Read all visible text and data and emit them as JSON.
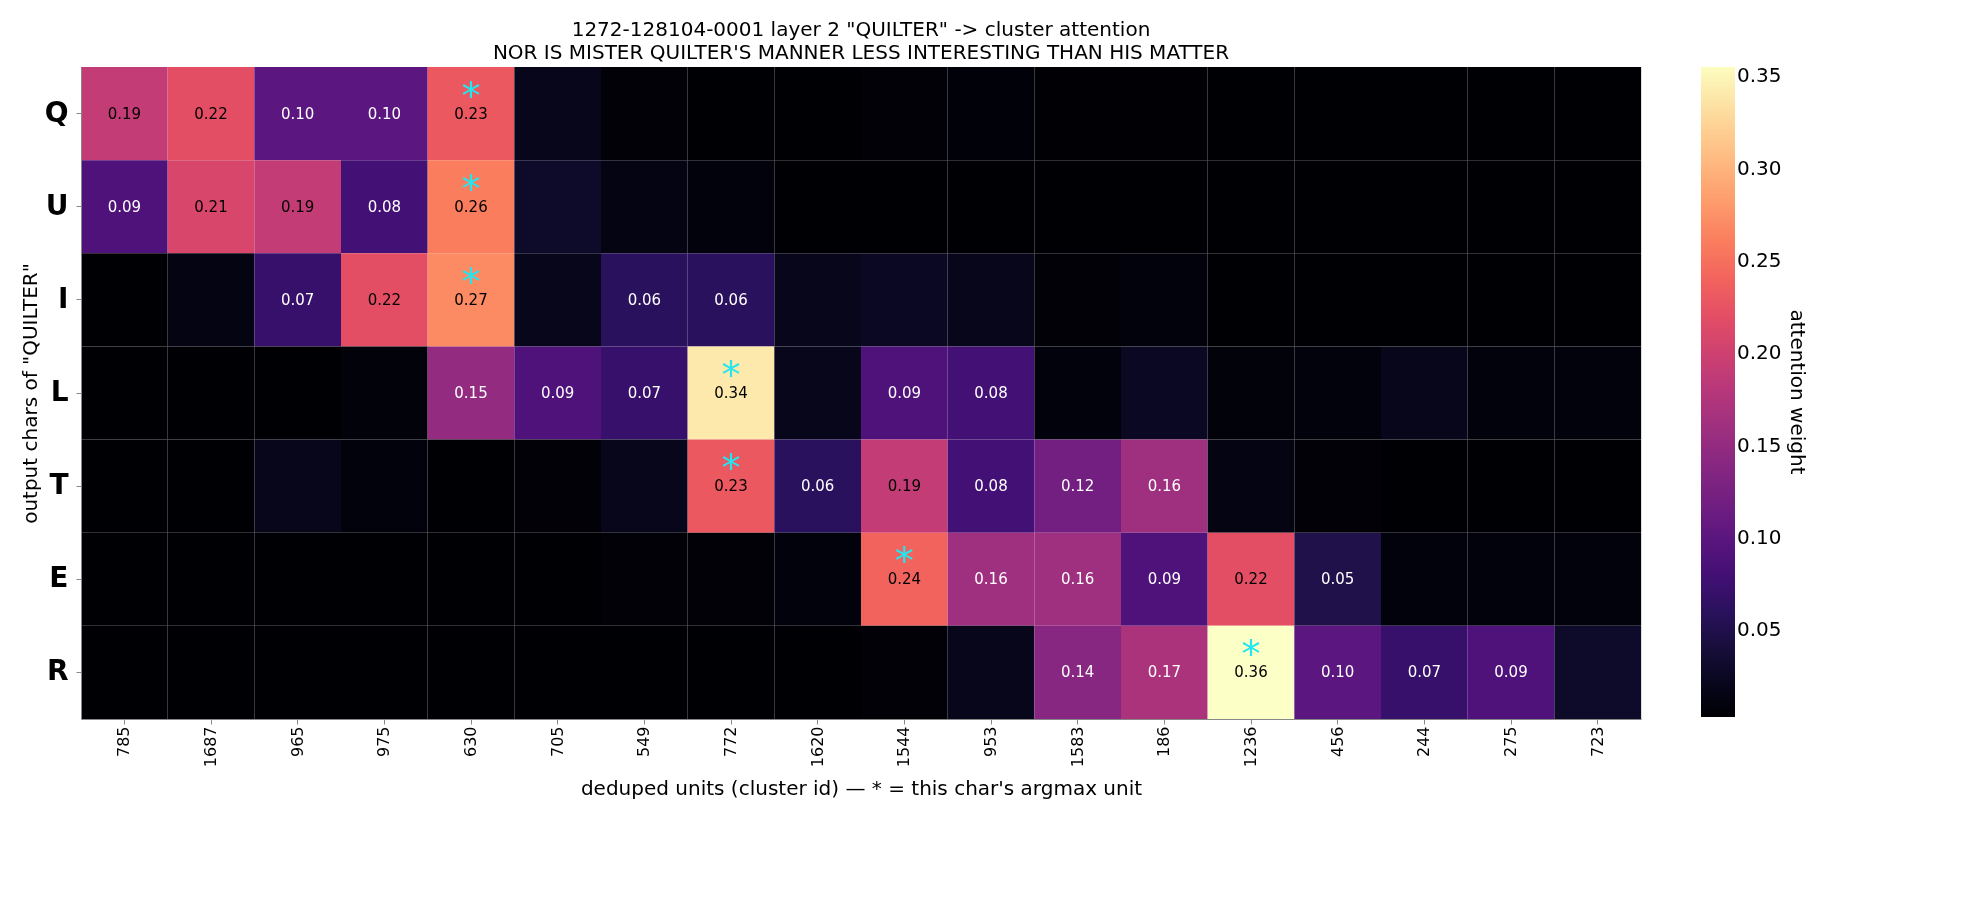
{
  "chart_data": {
    "type": "heatmap",
    "title": "1272-128104-0001  layer 2  \"QUILTER\"  ->  cluster attention",
    "subtitle": "NOR IS MISTER QUILTER'S MANNER LESS INTERESTING THAN HIS MATTER",
    "xlabel": "deduped units (cluster id)  — * = this char's argmax unit",
    "ylabel": "output chars of \"QUILTER\"",
    "clabel": "attention weight",
    "categories": [
      "785",
      "1687",
      "965",
      "975",
      "630",
      "705",
      "549",
      "772",
      "1620",
      "1544",
      "953",
      "1583",
      "186",
      "1236",
      "456",
      "244",
      "275",
      "723"
    ],
    "y_categories": [
      "Q",
      "U",
      "I",
      "L",
      "T",
      "E",
      "R"
    ],
    "cells": [
      [
        0.19,
        0.22,
        0.1,
        0.1,
        0.23,
        0.02,
        0.005,
        0.003,
        0.003,
        0.005,
        0.007,
        0.004,
        0.004,
        0.003,
        0.003,
        0.003,
        0.003,
        0.003
      ],
      [
        0.09,
        0.21,
        0.19,
        0.08,
        0.26,
        0.03,
        0.015,
        0.01,
        0.003,
        0.003,
        0.003,
        0.003,
        0.003,
        0.003,
        0.003,
        0.003,
        0.003,
        0.003
      ],
      [
        0.003,
        0.015,
        0.07,
        0.22,
        0.27,
        0.02,
        0.06,
        0.06,
        0.02,
        0.025,
        0.02,
        0.005,
        0.01,
        0.003,
        0.003,
        0.003,
        0.003,
        0.003
      ],
      [
        0.003,
        0.003,
        0.003,
        0.008,
        0.15,
        0.09,
        0.07,
        0.34,
        0.02,
        0.09,
        0.08,
        0.01,
        0.025,
        0.008,
        0.01,
        0.02,
        0.01,
        0.01
      ],
      [
        0.003,
        0.003,
        0.02,
        0.01,
        0.003,
        0.005,
        0.02,
        0.23,
        0.06,
        0.19,
        0.08,
        0.12,
        0.16,
        0.015,
        0.005,
        0.003,
        0.003,
        0.003
      ],
      [
        0.003,
        0.003,
        0.003,
        0.003,
        0.003,
        0.003,
        0.005,
        0.005,
        0.01,
        0.24,
        0.16,
        0.16,
        0.09,
        0.22,
        0.05,
        0.01,
        0.01,
        0.01
      ],
      [
        0.003,
        0.003,
        0.003,
        0.003,
        0.003,
        0.003,
        0.003,
        0.003,
        0.003,
        0.005,
        0.02,
        0.14,
        0.17,
        0.36,
        0.1,
        0.07,
        0.09,
        0.03
      ]
    ],
    "cell_labels": [
      [
        "0.19",
        "0.22",
        "0.10",
        "0.10",
        "0.23",
        null,
        null,
        null,
        null,
        null,
        null,
        null,
        null,
        null,
        null,
        null,
        null,
        null
      ],
      [
        "0.09",
        "0.21",
        "0.19",
        "0.08",
        "0.26",
        null,
        null,
        null,
        null,
        null,
        null,
        null,
        null,
        null,
        null,
        null,
        null,
        null
      ],
      [
        null,
        null,
        "0.07",
        "0.22",
        "0.27",
        null,
        "0.06",
        "0.06",
        null,
        null,
        null,
        null,
        null,
        null,
        null,
        null,
        null,
        null
      ],
      [
        null,
        null,
        null,
        null,
        "0.15",
        "0.09",
        "0.07",
        "0.34",
        null,
        "0.09",
        "0.08",
        null,
        null,
        null,
        null,
        null,
        null,
        null
      ],
      [
        null,
        null,
        null,
        null,
        null,
        null,
        null,
        "0.23",
        "0.06",
        "0.19",
        "0.08",
        "0.12",
        "0.16",
        null,
        null,
        null,
        null,
        null
      ],
      [
        null,
        null,
        null,
        null,
        null,
        null,
        null,
        null,
        null,
        "0.24",
        "0.16",
        "0.16",
        "0.09",
        "0.22",
        "0.05",
        null,
        null,
        null
      ],
      [
        null,
        null,
        null,
        null,
        null,
        null,
        null,
        null,
        null,
        null,
        null,
        "0.14",
        "0.17",
        "0.36",
        "0.10",
        "0.07",
        "0.09",
        null
      ]
    ],
    "clim": [
      0.003,
      0.355
    ],
    "cticks": [
      {
        "value": 0.05,
        "label": "0.05"
      },
      {
        "value": 0.1,
        "label": "0.10"
      },
      {
        "value": 0.15,
        "label": "0.15"
      },
      {
        "value": 0.2,
        "label": "0.20"
      },
      {
        "value": 0.25,
        "label": "0.25"
      },
      {
        "value": 0.3,
        "label": "0.30"
      },
      {
        "value": 0.35,
        "label": "0.35"
      }
    ],
    "annotations": [
      "*",
      "*",
      "*",
      "*",
      "*",
      "*",
      "*"
    ]
  }
}
